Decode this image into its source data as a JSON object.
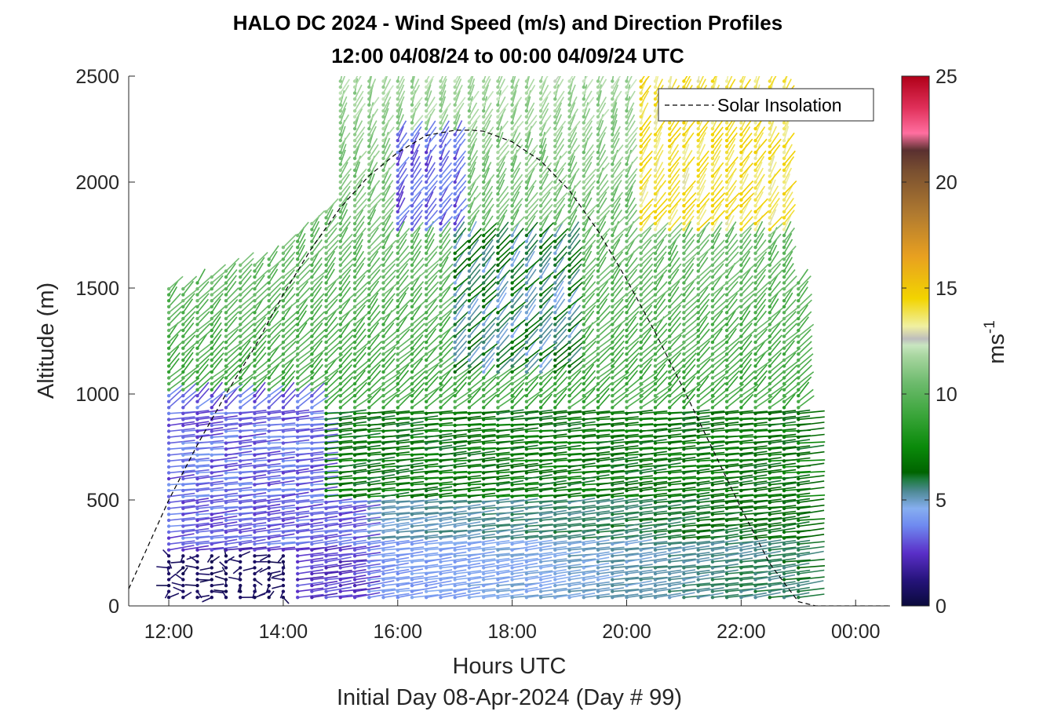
{
  "figure": {
    "title_line1": "HALO DC 2024 - Wind Speed (m/s) and Direction Profiles",
    "title_line2": "12:00 04/08/24 to 00:00 04/09/24  UTC",
    "xlabel": "Hours UTC",
    "sublabel": "Initial Day 08-Apr-2024 (Day # 99)",
    "ylabel": "Altitude (m)",
    "legend_text": "Solar Insolation",
    "colorbar_label_base": "ms",
    "colorbar_label_exp": "-1"
  },
  "chart_data": {
    "type": "quiver",
    "title": "HALO DC 2024 - Wind Speed (m/s) and Direction Profiles",
    "subtitle": "12:00 04/08/24 to 00:00 04/09/24  UTC",
    "xlabel": "Hours UTC",
    "ylabel": "Altitude (m)",
    "xlim": [
      11.3,
      24.6
    ],
    "ylim": [
      0,
      2500
    ],
    "x_ticks": [
      12,
      14,
      16,
      18,
      20,
      22,
      24
    ],
    "x_tick_labels": [
      "12:00",
      "14:00",
      "16:00",
      "18:00",
      "20:00",
      "22:00",
      "00:00"
    ],
    "y_ticks": [
      0,
      500,
      1000,
      1500,
      2000,
      2500
    ],
    "y_tick_labels": [
      "0",
      "500",
      "1000",
      "1500",
      "2000",
      "2500"
    ],
    "legend": {
      "entries": [
        "Solar Insolation"
      ],
      "placement": "top-right"
    },
    "colorbar": {
      "label": "ms-1",
      "range": [
        0,
        25
      ],
      "ticks": [
        0,
        5,
        10,
        15,
        20,
        25
      ],
      "tick_labels": [
        "0",
        "5",
        "10",
        "15",
        "20",
        "25"
      ],
      "stops": [
        {
          "v": 0,
          "c": "#0a0a3c"
        },
        {
          "v": 1.2,
          "c": "#25137a"
        },
        {
          "v": 2.5,
          "c": "#5a2fc8"
        },
        {
          "v": 3.8,
          "c": "#6f8af0"
        },
        {
          "v": 4.6,
          "c": "#86aef0"
        },
        {
          "v": 5.4,
          "c": "#4f8a96"
        },
        {
          "v": 6.0,
          "c": "#1b7a3a"
        },
        {
          "v": 6.3,
          "c": "#006400"
        },
        {
          "v": 7.5,
          "c": "#0a8a0a"
        },
        {
          "v": 9.0,
          "c": "#3aa53a"
        },
        {
          "v": 10.5,
          "c": "#6cba6c"
        },
        {
          "v": 11.8,
          "c": "#a8d6a0"
        },
        {
          "v": 12.3,
          "c": "#c8e6c0"
        },
        {
          "v": 12.6,
          "c": "#bdbdbd"
        },
        {
          "v": 13.2,
          "c": "#f0f0a0"
        },
        {
          "v": 14.5,
          "c": "#f2d400"
        },
        {
          "v": 16.5,
          "c": "#e8a020"
        },
        {
          "v": 18.5,
          "c": "#b07a30"
        },
        {
          "v": 20.5,
          "c": "#7a5030"
        },
        {
          "v": 21.5,
          "c": "#5a3030"
        },
        {
          "v": 22.3,
          "c": "#ff6fa0"
        },
        {
          "v": 23.5,
          "c": "#e0305a"
        },
        {
          "v": 25,
          "c": "#b00018"
        }
      ]
    },
    "profile_time_step_h": 0.25,
    "profile_start_h": 12.0,
    "profile_end_h": 23.0,
    "solar_insolation": {
      "name": "Solar Insolation",
      "x": [
        11.3,
        12.0,
        12.5,
        13.0,
        13.5,
        14.0,
        14.5,
        15.0,
        15.5,
        16.0,
        16.5,
        17.0,
        17.3,
        17.5,
        18.0,
        18.5,
        19.0,
        19.5,
        20.0,
        20.5,
        21.0,
        21.5,
        22.0,
        22.5,
        23.0,
        23.3,
        24.6
      ],
      "y": [
        80,
        500,
        760,
        1000,
        1220,
        1470,
        1690,
        1880,
        2030,
        2140,
        2220,
        2245,
        2245,
        2240,
        2190,
        2100,
        1960,
        1770,
        1540,
        1290,
        1020,
        740,
        460,
        200,
        20,
        0,
        0
      ]
    },
    "regions": [
      {
        "description": "calm boundary layer, speed ~0-1 m/s",
        "x": [
          12.0,
          14.2
        ],
        "alt": [
          40,
          260
        ]
      },
      {
        "description": "light winds, speed ~2-4 m/s",
        "x": [
          12.0,
          15.3
        ],
        "alt": [
          300,
          1000
        ]
      },
      {
        "description": "low-level jet, speed ~6-8 m/s",
        "x": [
          14.5,
          23.0
        ],
        "alt": [
          500,
          900
        ]
      },
      {
        "description": "upper winds, speed ~9-12 m/s",
        "x": [
          12.0,
          23.0
        ],
        "alt": [
          900,
          2500
        ]
      },
      {
        "description": "strong winds aloft, speed ~13-15 m/s",
        "x": [
          20.2,
          22.8
        ],
        "alt": [
          1700,
          2500
        ]
      }
    ]
  }
}
